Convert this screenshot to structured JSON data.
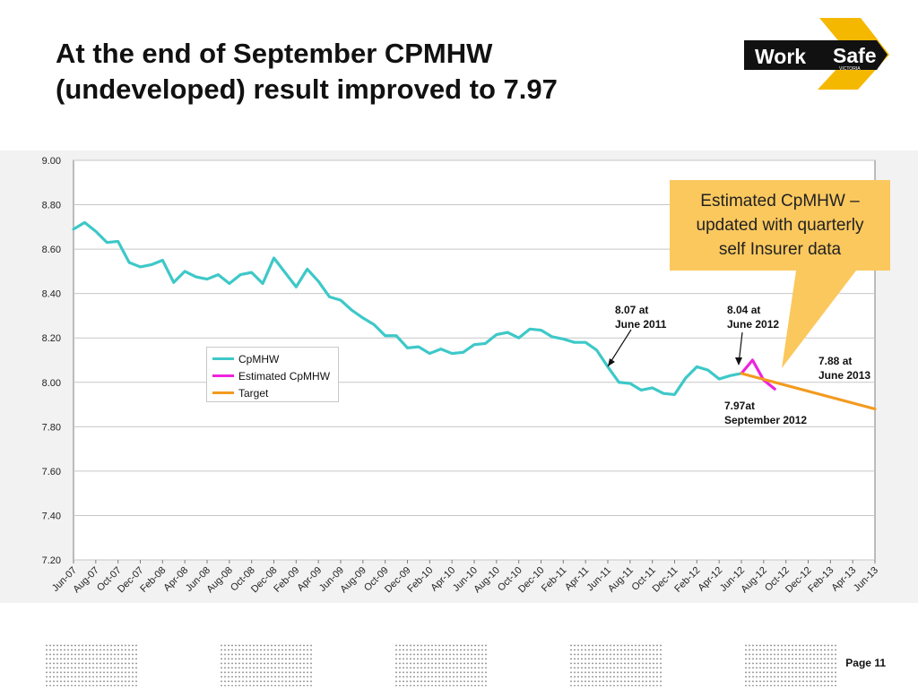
{
  "slide": {
    "title_line1": "At the end of September CPMHW",
    "title_line2": "(undeveloped) result improved to 7.97",
    "page": "Page 11"
  },
  "logo": {
    "word1": "Work",
    "word2": "Safe",
    "sub": "VICTORIA"
  },
  "callout": {
    "text": "Estimated CpMHW –\nupdated with quarterly\nself Insurer data"
  },
  "annotations": {
    "a1": "8.07 at\nJune 2011",
    "a2": "8.04 at\nJune 2012",
    "a3": "7.88 at\nJune 2013",
    "a4": "7.97at\nSeptember 2012"
  },
  "colors": {
    "cpmhw": "#3ec8c8",
    "estimated": "#ee22dd",
    "target": "#f39a1e",
    "callout": "#fbc85e",
    "logo_bg": "#111111",
    "logo_accent": "#f5b800"
  },
  "chart_data": {
    "type": "line",
    "ylim": [
      7.2,
      9.0
    ],
    "yticks": [
      "9.00",
      "8.80",
      "8.60",
      "8.40",
      "8.20",
      "8.00",
      "7.80",
      "7.60",
      "7.40",
      "7.20"
    ],
    "months": [
      "Jun-07",
      "Jul-07",
      "Aug-07",
      "Sep-07",
      "Oct-07",
      "Nov-07",
      "Dec-07",
      "Jan-08",
      "Feb-08",
      "Mar-08",
      "Apr-08",
      "May-08",
      "Jun-08",
      "Jul-08",
      "Aug-08",
      "Sep-08",
      "Oct-08",
      "Nov-08",
      "Dec-08",
      "Jan-09",
      "Feb-09",
      "Mar-09",
      "Apr-09",
      "May-09",
      "Jun-09",
      "Jul-09",
      "Aug-09",
      "Sep-09",
      "Oct-09",
      "Nov-09",
      "Dec-09",
      "Jan-10",
      "Feb-10",
      "Mar-10",
      "Apr-10",
      "May-10",
      "Jun-10",
      "Jul-10",
      "Aug-10",
      "Sep-10",
      "Oct-10",
      "Nov-10",
      "Dec-10",
      "Jan-11",
      "Feb-11",
      "Mar-11",
      "Apr-11",
      "May-11",
      "Jun-11",
      "Jul-11",
      "Aug-11",
      "Sep-11",
      "Oct-11",
      "Nov-11",
      "Dec-11",
      "Jan-12",
      "Feb-12",
      "Mar-12",
      "Apr-12",
      "May-12",
      "Jun-12",
      "Jul-12",
      "Aug-12",
      "Sep-12",
      "Oct-12",
      "Nov-12",
      "Dec-12",
      "Jan-13",
      "Feb-13",
      "Mar-13",
      "Apr-13",
      "May-13",
      "Jun-13"
    ],
    "tick_labels": [
      "Jun-07",
      "Aug-07",
      "Oct-07",
      "Dec-07",
      "Feb-08",
      "Apr-08",
      "Jun-08",
      "Aug-08",
      "Oct-08",
      "Dec-08",
      "Feb-09",
      "Apr-09",
      "Jun-09",
      "Aug-09",
      "Oct-09",
      "Dec-09",
      "Feb-10",
      "Apr-10",
      "Jun-10",
      "Aug-10",
      "Oct-10",
      "Dec-10",
      "Feb-11",
      "Apr-11",
      "Jun-11",
      "Aug-11",
      "Oct-11",
      "Dec-11",
      "Feb-12",
      "Apr-12",
      "Jun-12",
      "Aug-12",
      "Oct-12",
      "Dec-12",
      "Feb-13",
      "Apr-13",
      "Jun-13"
    ],
    "series": [
      {
        "name": "CpMHW",
        "start": "Jun-07",
        "values": [
          8.69,
          8.72,
          8.68,
          8.63,
          8.635,
          8.54,
          8.52,
          8.53,
          8.55,
          8.45,
          8.5,
          8.475,
          8.465,
          8.485,
          8.445,
          8.485,
          8.495,
          8.445,
          8.56,
          8.495,
          8.43,
          8.51,
          8.455,
          8.385,
          8.37,
          8.325,
          8.29,
          8.26,
          8.21,
          8.21,
          8.155,
          8.16,
          8.13,
          8.15,
          8.13,
          8.135,
          8.17,
          8.175,
          8.215,
          8.225,
          8.2,
          8.24,
          8.235,
          8.205,
          8.195,
          8.18,
          8.18,
          8.145,
          8.07,
          8.0,
          7.995,
          7.965,
          7.975,
          7.95,
          7.945,
          8.02,
          8.07,
          8.055,
          8.015,
          8.03,
          8.04
        ]
      },
      {
        "name": "Estimated CpMHW",
        "start": "Jun-12",
        "values": [
          8.04,
          8.1,
          8.01,
          7.97
        ]
      },
      {
        "name": "Target",
        "start": "Jun-12",
        "values": [
          8.04,
          7.88
        ],
        "end": "Jun-13"
      }
    ],
    "legend": [
      "CpMHW",
      "Estimated CpMHW",
      "Target"
    ],
    "legend_position": "center-left",
    "grid": true
  }
}
